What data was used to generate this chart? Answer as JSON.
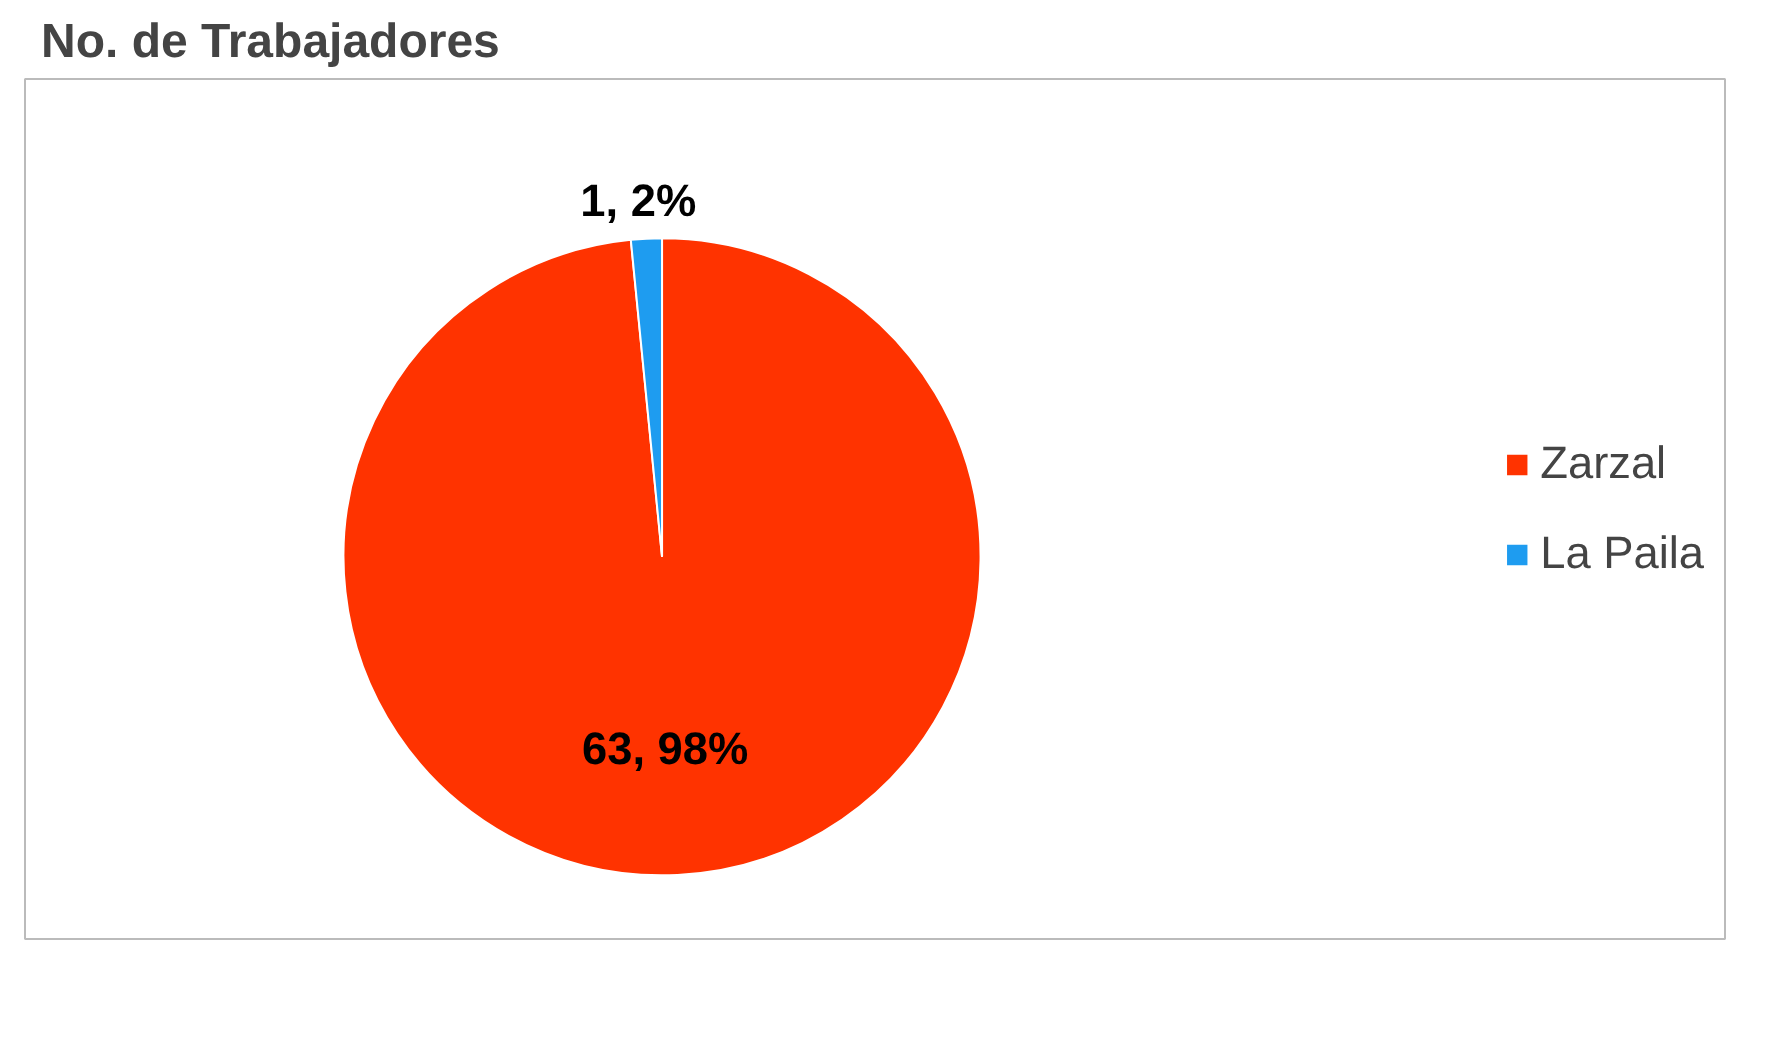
{
  "chart_data": {
    "type": "pie",
    "title": "No. de Trabajadores",
    "categories": [
      "Zarzal",
      "La Paila"
    ],
    "values": [
      63,
      1
    ],
    "colors": [
      "#ff3300",
      "#1e9cf0"
    ],
    "value_labels": [
      "63,  98%",
      "1,  2%"
    ],
    "legend": "right"
  }
}
